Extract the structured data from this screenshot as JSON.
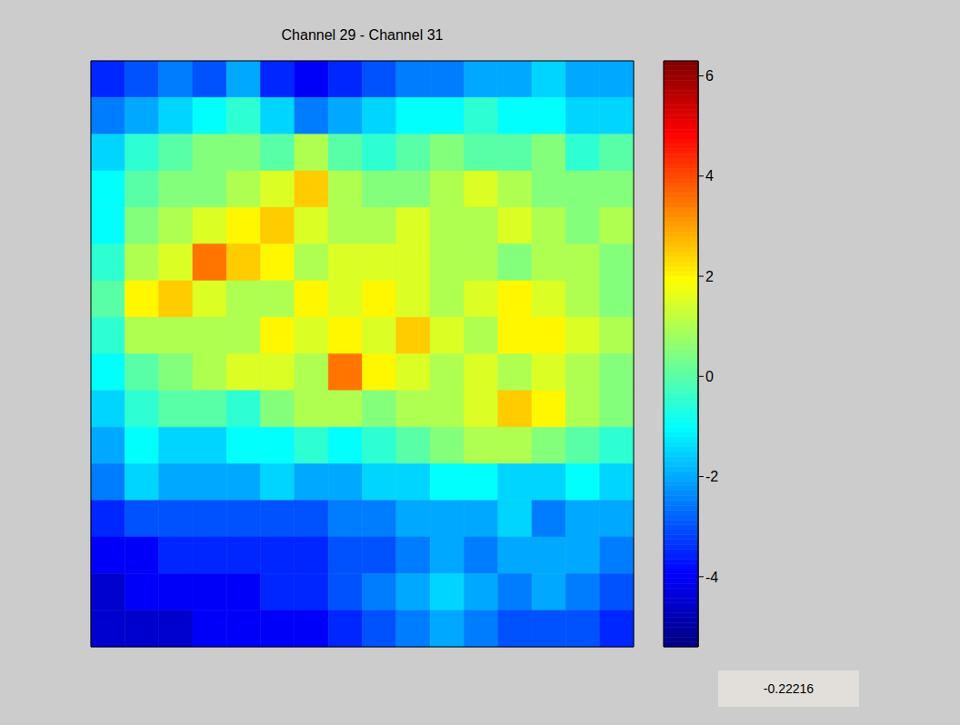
{
  "chart_data": {
    "type": "heatmap",
    "title": "Channel 29 - Channel 31",
    "color": "jet",
    "tick_labels": false,
    "annotation": "-0.22216",
    "colorbar": {
      "range": [
        -5.4,
        6.3
      ],
      "ticks": [
        -4,
        -2,
        0,
        2,
        4,
        6
      ]
    },
    "z": [
      [
        -3.5,
        -3,
        -2.5,
        -3,
        -2,
        -3.5,
        -4,
        -3.5,
        -3,
        -2.5,
        -2.5,
        -2,
        -2,
        -1.5,
        -2,
        -2
      ],
      [
        -2.5,
        -2,
        -1.5,
        -1,
        -0.5,
        -1.5,
        -2.5,
        -2,
        -1.5,
        -1,
        -1,
        -0.5,
        -1,
        -1,
        -1.5,
        -1.5
      ],
      [
        -1.5,
        -0.5,
        0,
        0.5,
        0.5,
        0,
        1,
        0,
        -0.5,
        0,
        0.5,
        0,
        0,
        0.5,
        -0.5,
        0
      ],
      [
        -1,
        0,
        0.5,
        0.5,
        1,
        1.5,
        2.5,
        1,
        0.5,
        0.5,
        1,
        1.5,
        1,
        0.5,
        0.5,
        0.5
      ],
      [
        -1,
        0.5,
        1,
        1.5,
        2,
        2.5,
        1.5,
        1,
        1,
        1.5,
        1,
        1,
        1.5,
        1,
        0.5,
        1
      ],
      [
        -0.5,
        1,
        1.5,
        3.5,
        2.5,
        2,
        1,
        1.5,
        1.5,
        1.5,
        1,
        1,
        0.5,
        1,
        1,
        0.5
      ],
      [
        0,
        2,
        2.5,
        1.5,
        1,
        1,
        2,
        1.5,
        2,
        1.5,
        1,
        1.5,
        2,
        1.5,
        1,
        0.5
      ],
      [
        -0.5,
        1,
        1,
        1,
        1,
        2,
        1.5,
        2,
        1.5,
        2.5,
        1.5,
        1,
        2,
        2,
        1.5,
        1
      ],
      [
        -1,
        0,
        0.5,
        1,
        1.5,
        1.5,
        1,
        3.5,
        2,
        1.5,
        1,
        1.5,
        1,
        1.5,
        1,
        0.5
      ],
      [
        -1.5,
        -0.5,
        0,
        0,
        -0.5,
        0.5,
        1,
        1,
        0.5,
        1,
        1,
        1.5,
        2.5,
        2,
        1,
        0.5
      ],
      [
        -2,
        -1,
        -1.5,
        -1.5,
        -1,
        -1,
        -0.5,
        -1,
        -0.5,
        0,
        0.5,
        1,
        1,
        0.5,
        0,
        -0.5
      ],
      [
        -2.5,
        -1.5,
        -2,
        -2,
        -2,
        -1.5,
        -2,
        -2,
        -1.5,
        -1.5,
        -1,
        -1,
        -1.5,
        -1.5,
        -1,
        -1.5
      ],
      [
        -3.5,
        -3,
        -3,
        -3,
        -3,
        -3,
        -3,
        -2.5,
        -2.5,
        -2,
        -2,
        -2,
        -1.5,
        -2.5,
        -2,
        -2
      ],
      [
        -4,
        -4,
        -3.5,
        -3.5,
        -3.5,
        -3.5,
        -3.5,
        -3,
        -3,
        -2.5,
        -2,
        -2.5,
        -2,
        -2,
        -2,
        -2.5
      ],
      [
        -4.5,
        -4,
        -4,
        -4,
        -4,
        -3.5,
        -3.5,
        -3,
        -2.5,
        -2,
        -1.5,
        -2,
        -2.5,
        -2,
        -2.5,
        -3
      ],
      [
        -4.5,
        -4.5,
        -4.5,
        -4,
        -4,
        -4,
        -4,
        -3.5,
        -3,
        -2.5,
        -2,
        -2.5,
        -3,
        -3,
        -3,
        -3.5
      ]
    ]
  }
}
